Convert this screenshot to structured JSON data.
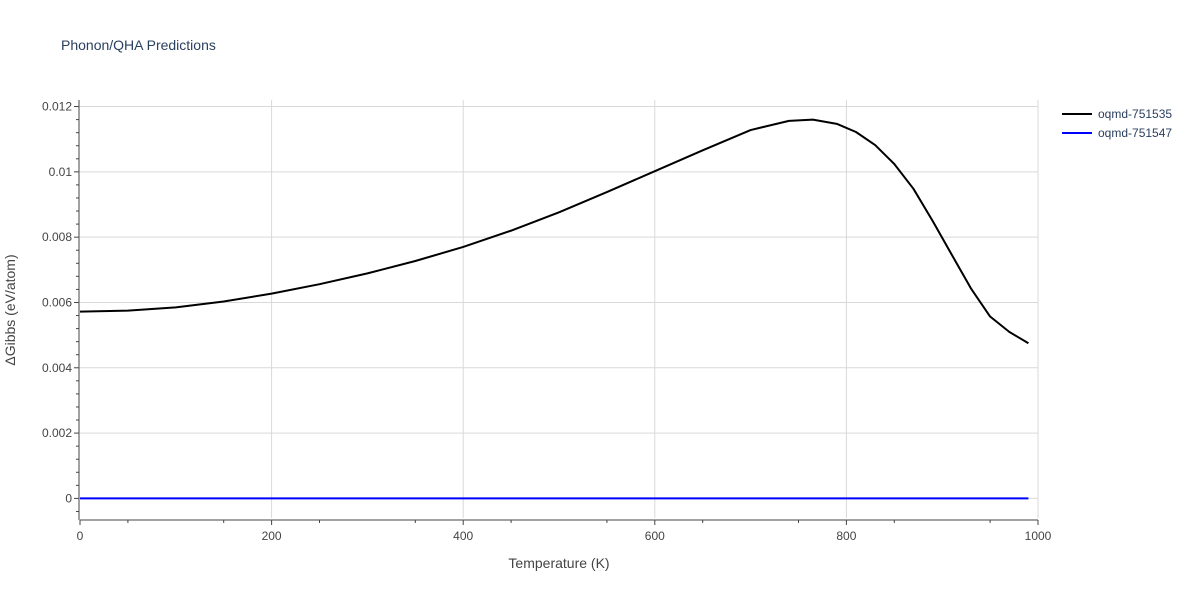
{
  "chart_data": {
    "type": "line",
    "title": "Phonon/QHA Predictions",
    "xlabel": "Temperature (K)",
    "ylabel": "ΔGibbs (eV/atom)",
    "xlim": [
      0,
      1000
    ],
    "ylim": [
      -0.0006,
      0.0122
    ],
    "x_ticks": [
      0,
      200,
      400,
      600,
      800,
      1000
    ],
    "x_tick_labels": [
      "0",
      "200",
      "400",
      "600",
      "800",
      "1000"
    ],
    "y_ticks": [
      0,
      0.002,
      0.004,
      0.006,
      0.008,
      0.01,
      0.012
    ],
    "y_tick_labels": [
      "0",
      "0.002",
      "0.004",
      "0.006",
      "0.008",
      "0.01",
      "0.012"
    ],
    "grid": true,
    "legend_position": "top-right",
    "series": [
      {
        "name": "oqmd-751535",
        "color": "#000000",
        "x": [
          0,
          50,
          100,
          150,
          200,
          250,
          300,
          350,
          400,
          450,
          500,
          550,
          600,
          650,
          700,
          740,
          765,
          790,
          810,
          830,
          850,
          870,
          890,
          910,
          930,
          950,
          970,
          990
        ],
        "y": [
          0.00572,
          0.00575,
          0.00585,
          0.00603,
          0.00627,
          0.00656,
          0.00689,
          0.00727,
          0.0077,
          0.0082,
          0.00876,
          0.00938,
          0.01002,
          0.01066,
          0.01128,
          0.01156,
          0.0116,
          0.01147,
          0.01122,
          0.01082,
          0.01024,
          0.00948,
          0.0085,
          0.00746,
          0.00643,
          0.00557,
          0.0051,
          0.00475
        ]
      },
      {
        "name": "oqmd-751547",
        "color": "#0000ff",
        "x": [
          0,
          990
        ],
        "y": [
          0,
          0
        ]
      }
    ]
  }
}
